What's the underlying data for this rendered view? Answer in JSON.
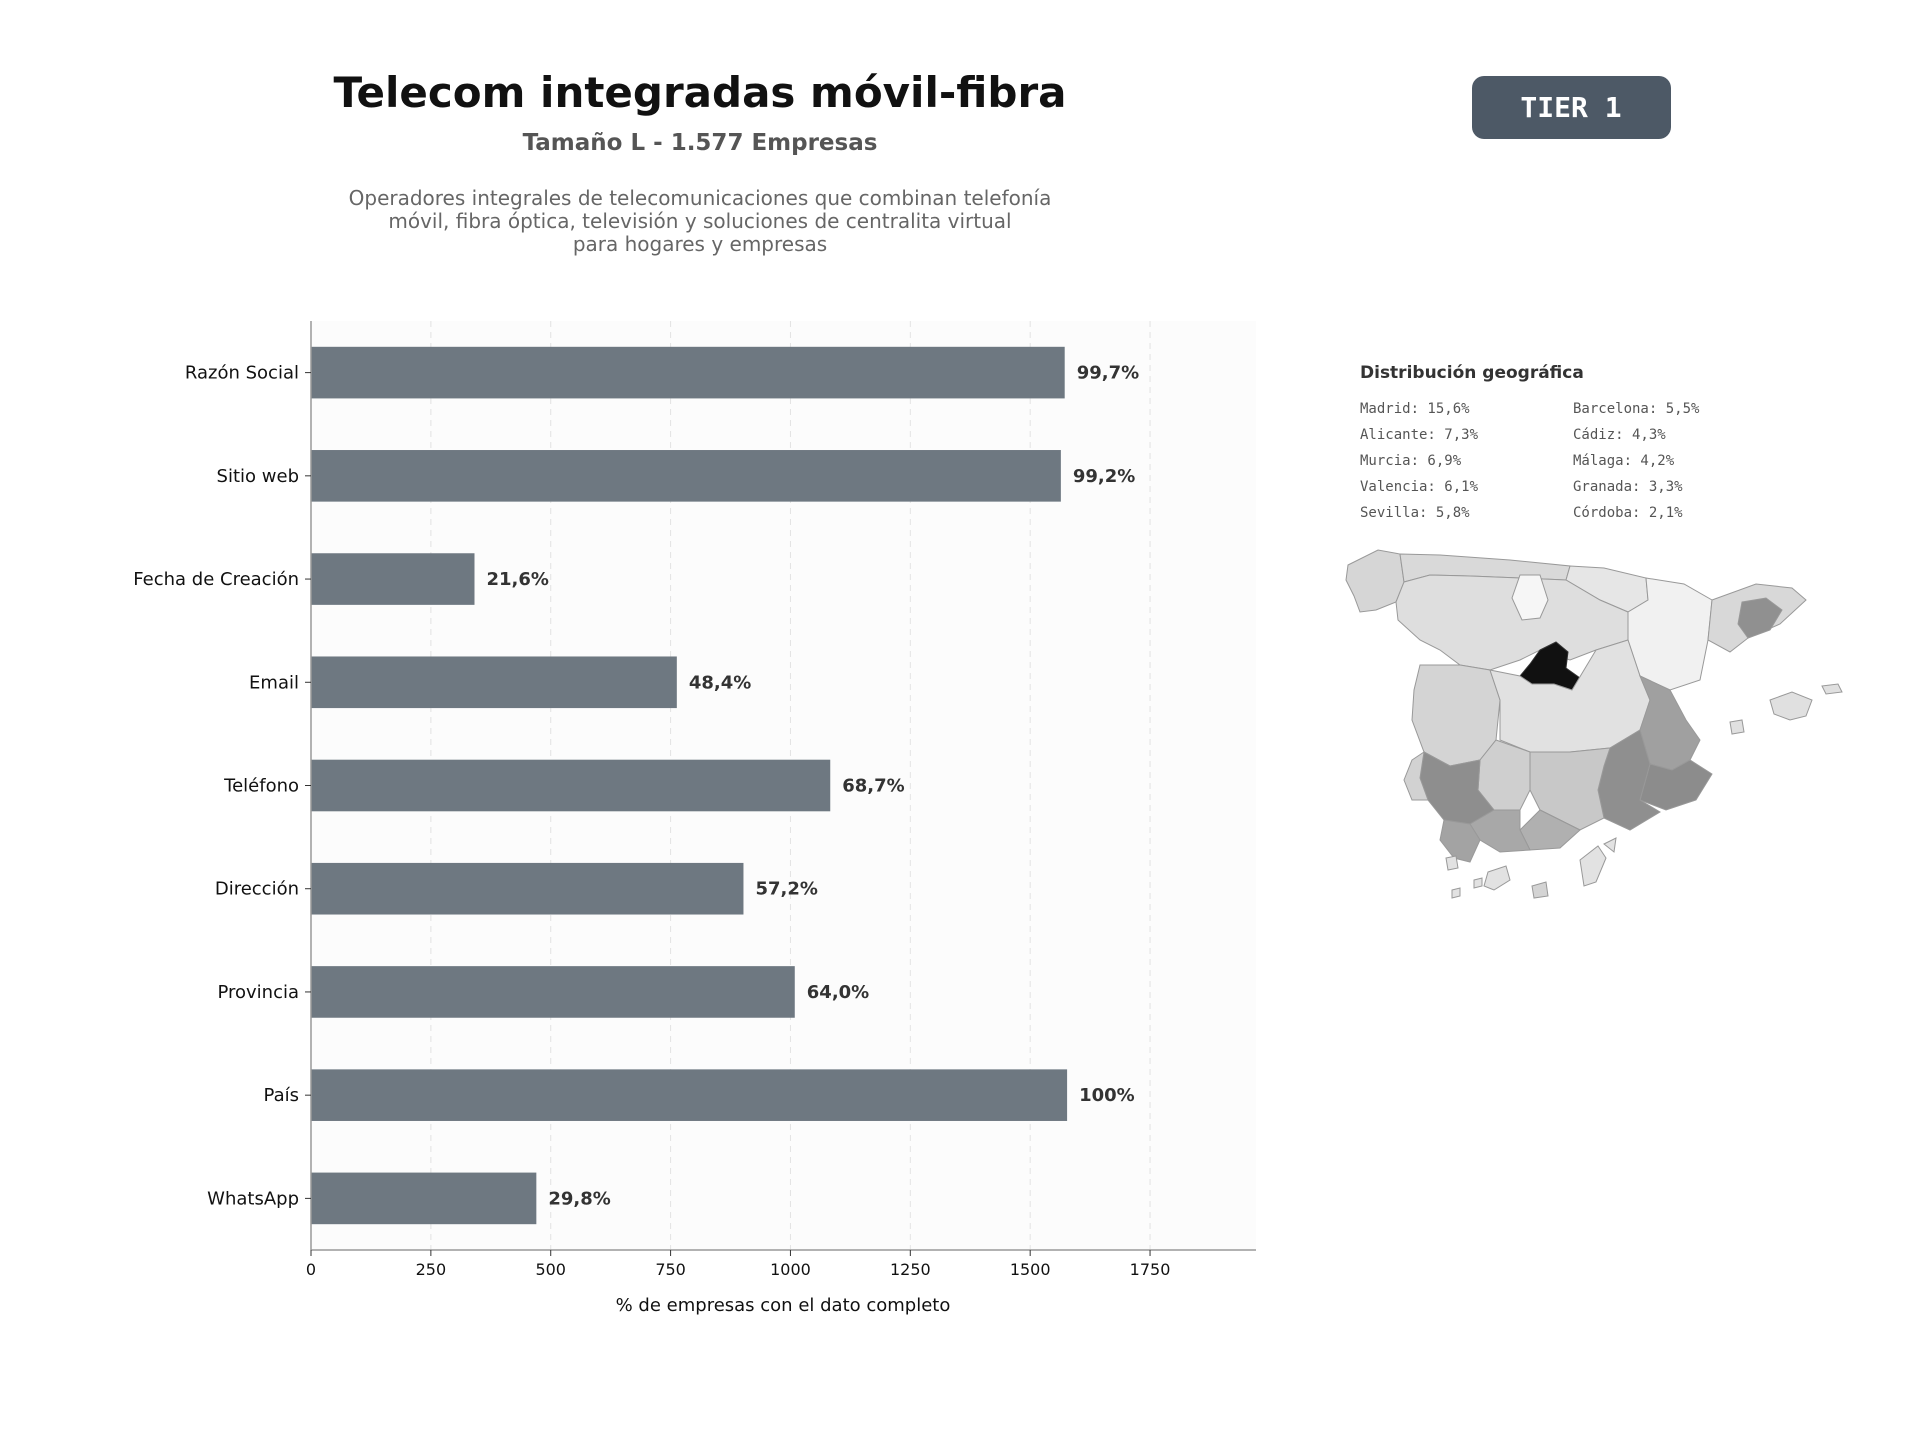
{
  "header": {
    "title": "Telecom integradas móvil-fibra",
    "subtitle": "Tamaño L - 1.577 Empresas",
    "description_lines": [
      "Operadores integrales de telecomunicaciones que combinan telefonía",
      "móvil, fibra óptica, televisión y soluciones de centralita virtual",
      "para hogares y empresas"
    ],
    "tier_badge": "TIER 1"
  },
  "colors": {
    "bar": "#6e7881",
    "badge": "#4d5966",
    "plot_bg": "#fcfcfc",
    "madrid": "#111111"
  },
  "chart_data": {
    "type": "bar",
    "orientation": "horizontal",
    "categories": [
      "Razón Social",
      "Sitio web",
      "Fecha de Creación",
      "Email",
      "Teléfono",
      "Dirección",
      "Provincia",
      "País",
      "WhatsApp"
    ],
    "values": [
      1572,
      1564,
      341,
      763,
      1083,
      902,
      1009,
      1577,
      470
    ],
    "data_labels": [
      "99,7%",
      "99,2%",
      "21,6%",
      "48,4%",
      "68,7%",
      "57,2%",
      "64,0%",
      "100%",
      "29,8%"
    ],
    "xlabel": "% de empresas con el dato completo",
    "ylabel": "",
    "xlim": [
      0,
      1971
    ],
    "xticks": [
      0,
      250,
      500,
      750,
      1000,
      1250,
      1500,
      1750
    ],
    "grid": "vertical dashed"
  },
  "geo": {
    "title": "Distribución geográfica",
    "items": [
      "Madrid: 15,6%",
      "Alicante: 7,3%",
      "Murcia: 6,9%",
      "Valencia: 6,1%",
      "Sevilla: 5,8%",
      "Barcelona: 5,5%",
      "Cádiz: 4,3%",
      "Málaga: 4,2%",
      "Granada: 3,3%",
      "Córdoba: 2,1%"
    ]
  }
}
